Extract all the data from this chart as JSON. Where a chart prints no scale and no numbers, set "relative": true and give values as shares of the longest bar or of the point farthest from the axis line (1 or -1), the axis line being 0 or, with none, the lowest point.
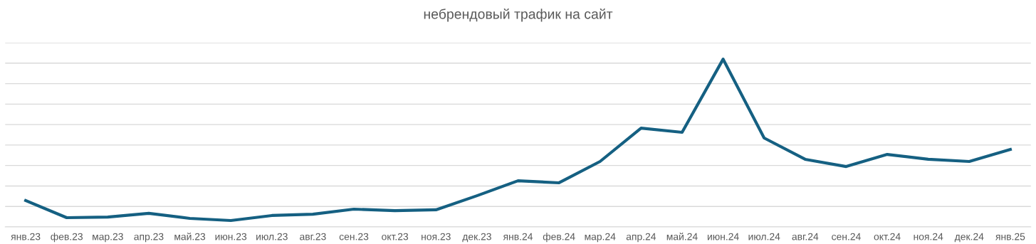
{
  "chart_data": {
    "type": "line",
    "title": "небрендовый трафик на сайт",
    "relative": true,
    "grid": "y",
    "marker": "none",
    "line_style": "solid",
    "categories": [
      "янв.23",
      "фев.23",
      "мар.23",
      "апр.23",
      "май.23",
      "июн.23",
      "июл.23",
      "авг.23",
      "сен.23",
      "окт.23",
      "ноя.23",
      "дек.23",
      "янв.24",
      "фев.24",
      "мар.24",
      "апр.24",
      "май.24",
      "июн.24",
      "июл.24",
      "авг.24",
      "сен.24",
      "окт.24",
      "ноя.24",
      "дек.24",
      "янв.25"
    ],
    "series": [
      {
        "color": "#156082",
        "values": [
          0.157,
          0.055,
          0.059,
          0.081,
          0.051,
          0.038,
          0.068,
          0.076,
          0.106,
          0.097,
          0.102,
          0.186,
          0.275,
          0.263,
          0.39,
          0.589,
          0.564,
          1.0,
          0.53,
          0.403,
          0.36,
          0.432,
          0.403,
          0.39,
          0.462
        ]
      }
    ]
  }
}
